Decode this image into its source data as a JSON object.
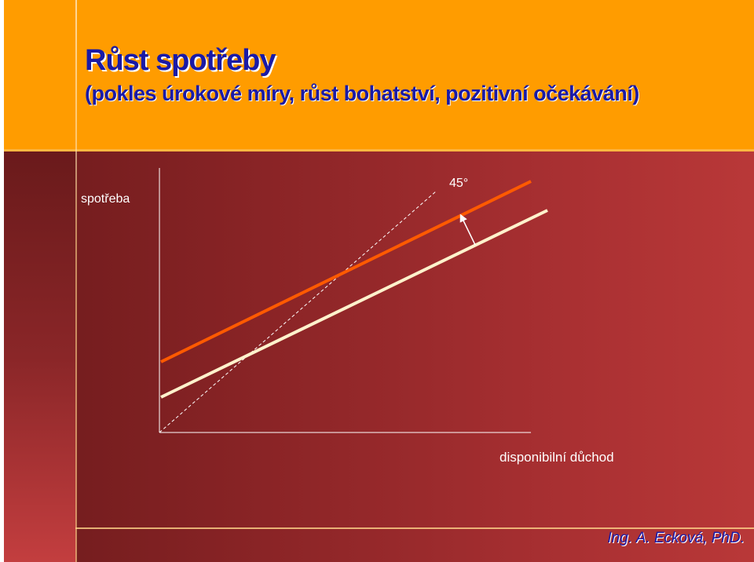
{
  "slide": {
    "title": "Růst spotřeby",
    "subtitle": "(pokles úrokové míry, růst bohatství, pozitivní očekávání)",
    "author": "Ing. A. Ecková, PhD."
  },
  "diagram": {
    "y_axis_label": "spotřeba",
    "x_axis_label": "disponibilní důchod",
    "angle_label": "45°",
    "colors": {
      "axis": "#ffffff",
      "original_consumption_line": "#fff2cc",
      "shifted_consumption_line": "#ff5a00",
      "reference_45_line": "#ffffff",
      "arrow": "#ffffff",
      "header_background": "#ff9c00",
      "title_text": "#1a1aa6"
    }
  }
}
